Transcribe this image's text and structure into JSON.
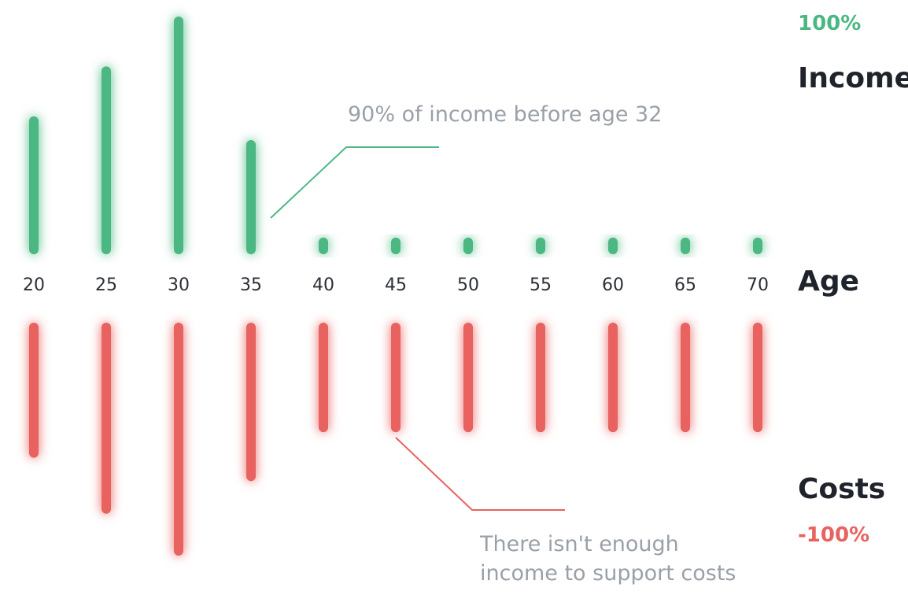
{
  "colors": {
    "income": "#4cb782",
    "costs": "#e8625f",
    "text_dark": "#1f232b",
    "annotation": "#9aa0a8"
  },
  "labels": {
    "income_pct": "100%",
    "income": "Income",
    "age": "Age",
    "costs": "Costs",
    "costs_pct": "-100%"
  },
  "annotations": {
    "income_note": "90% of income before age 32",
    "costs_note_line1": "There isn't enough",
    "costs_note_line2": "income to support costs"
  },
  "chart_data": {
    "type": "bar",
    "categories": [
      "20",
      "25",
      "30",
      "35",
      "40",
      "45",
      "50",
      "55",
      "60",
      "65",
      "70"
    ],
    "series": [
      {
        "name": "Income",
        "values": [
          58,
          79,
          100,
          48,
          7,
          7,
          7,
          7,
          7,
          7,
          7
        ]
      },
      {
        "name": "Costs",
        "values": [
          -58,
          -82,
          -100,
          -68,
          -47,
          -47,
          -47,
          -47,
          -47,
          -47,
          -47
        ]
      }
    ],
    "xlabel": "Age",
    "ylim": [
      -100,
      100
    ]
  }
}
